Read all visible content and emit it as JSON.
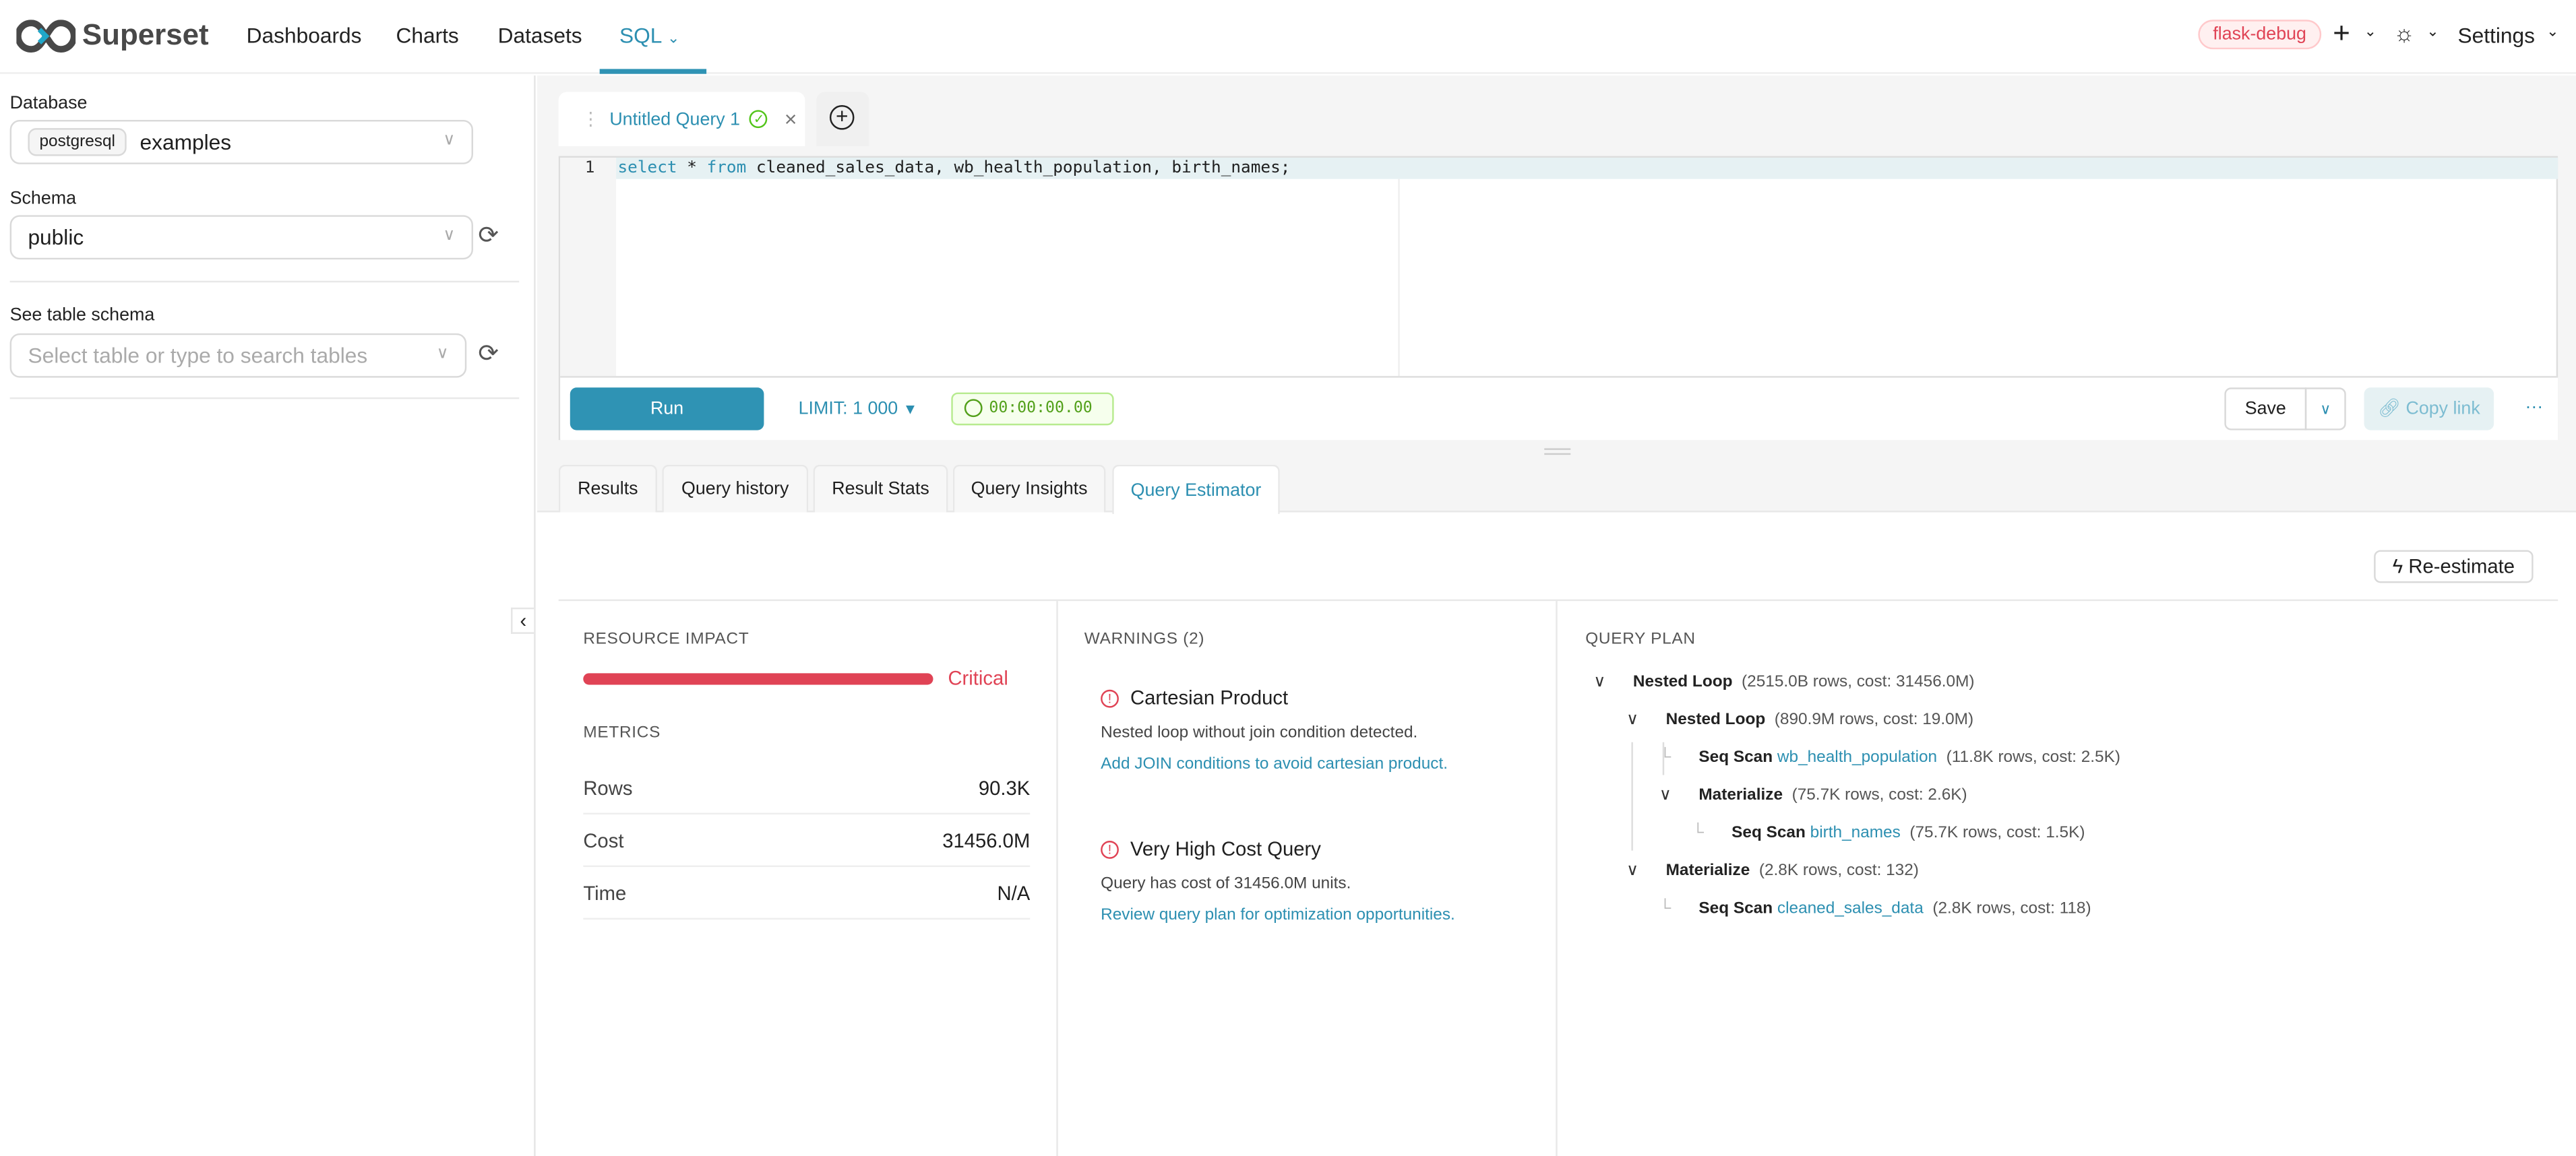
{
  "header": {
    "brand": "Superset",
    "nav": [
      {
        "label": "Dashboards"
      },
      {
        "label": "Charts"
      },
      {
        "label": "Datasets"
      },
      {
        "label": "SQL",
        "active": true
      }
    ],
    "env_badge": "flask-debug",
    "settings_label": "Settings"
  },
  "sidebar": {
    "database_label": "Database",
    "database_engine": "postgresql",
    "database_value": "examples",
    "schema_label": "Schema",
    "schema_value": "public",
    "table_schema_label": "See table schema",
    "table_placeholder": "Select table or type to search tables"
  },
  "editor": {
    "tab_title": "Untitled Query 1",
    "line_number": "1",
    "sql": "select * from cleaned_sales_data, wb_health_population, birth_names;"
  },
  "toolbar": {
    "run_label": "Run",
    "limit_label": "LIMIT:",
    "limit_value": "1 000",
    "timer": "00:00:00.00",
    "save_label": "Save",
    "copy_link_label": "Copy link",
    "more_label": "···"
  },
  "result_tabs": [
    {
      "label": "Results"
    },
    {
      "label": "Query history"
    },
    {
      "label": "Result Stats"
    },
    {
      "label": "Query Insights"
    },
    {
      "label": "Query Estimator",
      "active": true
    }
  ],
  "estimator": {
    "reestimate_label": "Re-estimate",
    "resource_impact_title": "RESOURCE IMPACT",
    "impact_level": "Critical",
    "impact_fraction": 1.0,
    "metrics_title": "METRICS",
    "metrics": [
      {
        "label": "Rows",
        "value": "90.3K"
      },
      {
        "label": "Cost",
        "value": "31456.0M"
      },
      {
        "label": "Time",
        "value": "N/A"
      }
    ],
    "warnings_title": "WARNINGS (2)",
    "warnings": [
      {
        "title": "Cartesian Product",
        "description": "Nested loop without join condition detected.",
        "suggestion": "Add JOIN conditions to avoid cartesian product."
      },
      {
        "title": "Very High Cost Query",
        "description": "Query has cost of 31456.0M units.",
        "suggestion": "Review query plan for optimization opportunities."
      }
    ],
    "plan_title": "QUERY PLAN",
    "plan": [
      {
        "node": "Nested Loop",
        "table": "",
        "detail": "(2515.0B rows, cost: 31456.0M)"
      },
      {
        "node": "Nested Loop",
        "table": "",
        "detail": "(890.9M rows, cost: 19.0M)"
      },
      {
        "node": "Seq Scan",
        "table": "wb_health_population",
        "detail": "(11.8K rows, cost: 2.5K)"
      },
      {
        "node": "Materialize",
        "table": "",
        "detail": "(75.7K rows, cost: 2.6K)"
      },
      {
        "node": "Seq Scan",
        "table": "birth_names",
        "detail": "(75.7K rows, cost: 1.5K)"
      },
      {
        "node": "Materialize",
        "table": "",
        "detail": "(2.8K rows, cost: 132)"
      },
      {
        "node": "Seq Scan",
        "table": "cleaned_sales_data",
        "detail": "(2.8K rows, cost: 118)"
      }
    ]
  },
  "colors": {
    "accent": "#2f93b4",
    "critical": "#e04355",
    "success": "#52c41a"
  }
}
